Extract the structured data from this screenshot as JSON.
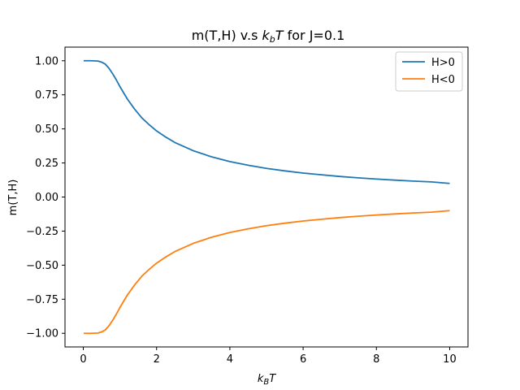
{
  "chart_data": {
    "type": "line",
    "title_main": "m(T,H) v.s ",
    "title_math": "k",
    "title_math_sub": "b",
    "title_math_T": "T",
    "title_tail": " for J=0.1",
    "xlabel_math": "k",
    "xlabel_sub": "B",
    "xlabel_T": "T",
    "ylabel": "m(T,H)",
    "xlim": [
      -0.5,
      10.5
    ],
    "ylim": [
      -1.1,
      1.1
    ],
    "xticks": [
      0,
      2,
      4,
      6,
      8,
      10
    ],
    "xtick_labels": [
      "0",
      "2",
      "4",
      "6",
      "8",
      "10"
    ],
    "yticks": [
      1.0,
      0.75,
      0.5,
      0.25,
      0.0,
      -0.25,
      -0.5,
      -0.75,
      -1.0
    ],
    "ytick_labels": [
      "1.00",
      "0.75",
      "0.50",
      "0.25",
      "0.00",
      "−0.25",
      "−0.50",
      "−0.75",
      "−1.00"
    ],
    "grid": false,
    "legend_position": "top-right",
    "series": [
      {
        "name": "H>0",
        "color": "#1f77b4",
        "x": [
          0.01,
          0.2,
          0.4,
          0.5,
          0.6,
          0.7,
          0.8,
          0.9,
          1.0,
          1.2,
          1.4,
          1.6,
          1.8,
          2.0,
          2.25,
          2.5,
          2.75,
          3.0,
          3.5,
          4.0,
          4.5,
          5.0,
          5.5,
          6.0,
          6.5,
          7.0,
          7.5,
          8.0,
          8.5,
          9.0,
          9.5,
          10.0
        ],
        "y": [
          1.0,
          1.0,
          0.998,
          0.99,
          0.975,
          0.945,
          0.905,
          0.86,
          0.81,
          0.72,
          0.645,
          0.58,
          0.53,
          0.485,
          0.44,
          0.4,
          0.37,
          0.34,
          0.295,
          0.26,
          0.233,
          0.21,
          0.192,
          0.176,
          0.163,
          0.151,
          0.141,
          0.132,
          0.124,
          0.117,
          0.111,
          0.1
        ]
      },
      {
        "name": "H<0",
        "color": "#ff7f0e",
        "x": [
          0.01,
          0.2,
          0.4,
          0.5,
          0.6,
          0.7,
          0.8,
          0.9,
          1.0,
          1.2,
          1.4,
          1.6,
          1.8,
          2.0,
          2.25,
          2.5,
          2.75,
          3.0,
          3.5,
          4.0,
          4.5,
          5.0,
          5.5,
          6.0,
          6.5,
          7.0,
          7.5,
          8.0,
          8.5,
          9.0,
          9.5,
          10.0
        ],
        "y": [
          -1.0,
          -1.0,
          -0.998,
          -0.99,
          -0.975,
          -0.945,
          -0.905,
          -0.86,
          -0.81,
          -0.72,
          -0.645,
          -0.58,
          -0.53,
          -0.485,
          -0.44,
          -0.4,
          -0.37,
          -0.34,
          -0.295,
          -0.26,
          -0.233,
          -0.21,
          -0.192,
          -0.176,
          -0.163,
          -0.151,
          -0.141,
          -0.132,
          -0.124,
          -0.117,
          -0.111,
          -0.1
        ]
      }
    ]
  }
}
